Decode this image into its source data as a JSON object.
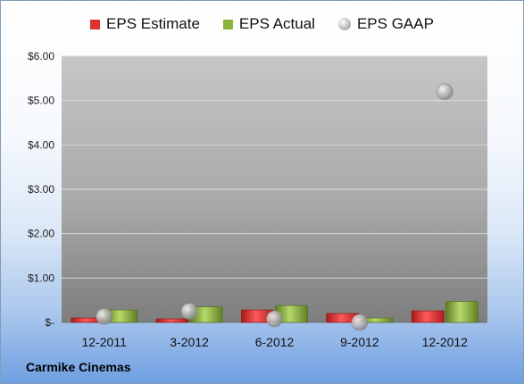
{
  "legend": [
    {
      "label": "EPS Estimate",
      "color": "#e03131"
    },
    {
      "label": "EPS Actual",
      "color": "#8db33a"
    },
    {
      "label": "EPS GAAP",
      "color": "#b0b0b0"
    }
  ],
  "company": "Carmike Cinemas",
  "chart_data": {
    "type": "bar",
    "categories": [
      "12-2011",
      "3-2012",
      "6-2012",
      "9-2012",
      "12-2012"
    ],
    "series": [
      {
        "name": "EPS Estimate",
        "type": "bar",
        "color": "#e03131",
        "values": [
          0.1,
          0.08,
          0.28,
          0.2,
          0.26
        ]
      },
      {
        "name": "EPS Actual",
        "type": "bar",
        "color": "#8db33a",
        "values": [
          0.28,
          0.35,
          0.38,
          0.1,
          0.47
        ]
      },
      {
        "name": "EPS GAAP",
        "type": "scatter",
        "color": "#b0b0b0",
        "values": [
          0.13,
          0.25,
          0.08,
          0.0,
          5.2
        ]
      }
    ],
    "yticks": [
      "$-",
      "$1.00",
      "$2.00",
      "$3.00",
      "$4.00",
      "$5.00",
      "$6.00"
    ],
    "ylim": [
      0,
      6
    ],
    "grid": true,
    "legend_position": "top"
  }
}
